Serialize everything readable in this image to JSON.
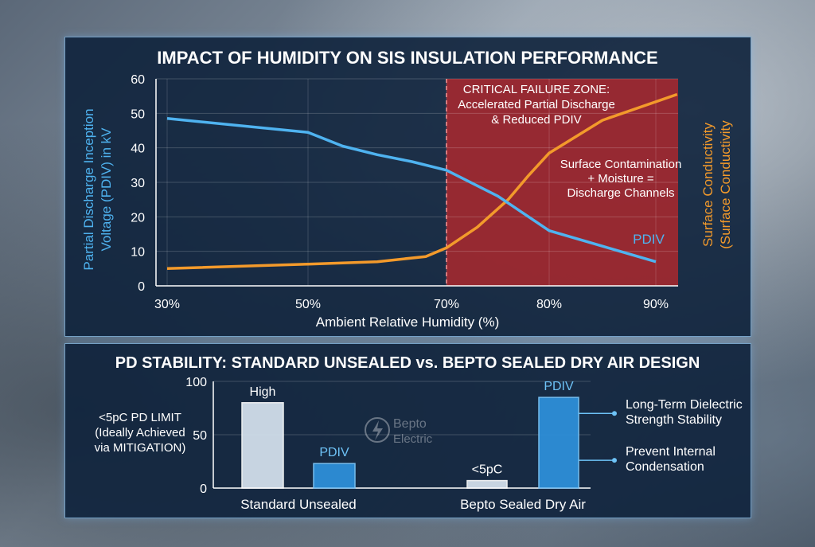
{
  "chart_data": [
    {
      "type": "line",
      "title": "IMPACT OF HUMIDITY ON SIS INSULATION PERFORMANCE",
      "xlabel": "Ambient Relative Humidity (%)",
      "ylabel": "Partial Discharge Inception Voltage (PDIV) in kV",
      "ylabel_right": "Surface Conductivity (Surface Conductivity",
      "x_ticks": [
        "30%",
        "50%",
        "70%",
        "80%",
        "90%"
      ],
      "y_ticks": [
        "0",
        "10",
        "20",
        "30",
        "40",
        "50",
        "60"
      ],
      "ylim": [
        0,
        60
      ],
      "series": [
        {
          "name": "PDIV",
          "color": "#4fb3f0",
          "x": [
            30,
            50,
            55,
            60,
            65,
            70,
            75,
            80,
            85,
            90
          ],
          "y": [
            48.5,
            44.5,
            40.5,
            38,
            36,
            33.5,
            26,
            16,
            11.5,
            7
          ]
        },
        {
          "name": "Surface Conductivity",
          "color": "#f39a2b",
          "x": [
            30,
            50,
            60,
            67,
            70,
            73,
            76,
            78,
            80,
            85,
            92
          ],
          "y": [
            5,
            6.3,
            7,
            8.5,
            11,
            17,
            25,
            32,
            38.5,
            48,
            55.5
          ]
        }
      ],
      "shaded_region": {
        "x_from": 70,
        "x_to": 92,
        "color": "#b8282c"
      },
      "annotations": {
        "critical_line1": "CRITICAL FAILURE ZONE:",
        "critical_line2": "Accelerated Partial Discharge",
        "critical_line3": "& Reduced PDIV",
        "surface_line1": "Surface Contamination",
        "surface_line2": "+ Moisture =",
        "surface_line3": "Discharge Channels",
        "pdiv_label": "PDIV"
      }
    },
    {
      "type": "bar",
      "title": "PD STABILITY: STANDARD UNSEALED vs. BEPTO SEALED DRY AIR DESIGN",
      "categories": [
        "Standard Unsealed",
        "Bepto Sealed Dry Air"
      ],
      "y_ticks": [
        "0",
        "50",
        "100"
      ],
      "ylim": [
        0,
        100
      ],
      "bars": [
        {
          "group": 0,
          "slot": 0,
          "value": 80,
          "label": "High",
          "kind": "pd"
        },
        {
          "group": 0,
          "slot": 1,
          "value": 23,
          "label": "PDIV",
          "kind": "pdiv"
        },
        {
          "group": 1,
          "slot": 0,
          "value": 7,
          "label": "<5pC",
          "kind": "pd"
        },
        {
          "group": 1,
          "slot": 1,
          "value": 85,
          "label": "PDIV",
          "kind": "pdiv"
        }
      ],
      "left_note": [
        "<5pC PD LIMIT",
        "(Ideally Achieved",
        "via MITIGATION)"
      ],
      "callouts": [
        {
          "lines": [
            "Long-Term Dielectric",
            "Strength Stability"
          ],
          "at_value": 70
        },
        {
          "lines": [
            "Prevent Internal",
            "Condensation"
          ],
          "at_value": 26
        }
      ],
      "watermark": {
        "line1": "Bepto",
        "line2": "Electric"
      }
    }
  ],
  "colors": {
    "pdiv": "#4fb3f0",
    "surface": "#f39a2b",
    "bar_pale": "#d6e3ef",
    "bar_blue": "#2e8fd8"
  }
}
